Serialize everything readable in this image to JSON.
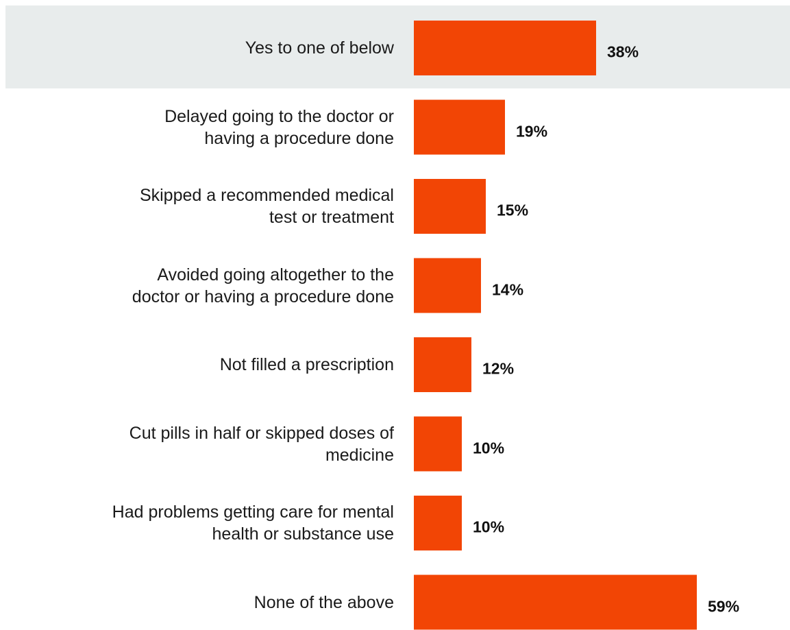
{
  "chart_data": {
    "type": "bar",
    "orientation": "horizontal",
    "categories": [
      "Yes to one of below",
      "Delayed going to the doctor or having a procedure done",
      "Skipped a recommended medical test or treatment",
      "Avoided going altogether to the doctor or having a procedure done",
      "Not filled a prescription",
      "Cut pills in half or skipped doses of medicine",
      "Had problems getting care for mental health or substance use",
      "None of the above"
    ],
    "label_lines": [
      [
        "Yes to one of below"
      ],
      [
        "Delayed going to the doctor or",
        "having a procedure done"
      ],
      [
        "Skipped a recommended medical",
        "test or treatment"
      ],
      [
        "Avoided going altogether to the",
        "doctor or having a procedure done"
      ],
      [
        "Not filled a prescription"
      ],
      [
        "Cut pills in half or skipped doses of",
        "medicine"
      ],
      [
        "Had problems getting care for mental",
        "health or substance use"
      ],
      [
        "None of the above"
      ]
    ],
    "values": [
      38,
      19,
      15,
      14,
      12,
      10,
      10,
      59
    ],
    "value_labels": [
      "38%",
      "19%",
      "15%",
      "14%",
      "12%",
      "10%",
      "10%",
      "59%"
    ],
    "highlighted_category_index": 0,
    "bar_color": "#f24505",
    "highlight_band_color": "#e8ecec",
    "xlim": [
      0,
      100
    ],
    "grid": false,
    "legend": "none"
  }
}
